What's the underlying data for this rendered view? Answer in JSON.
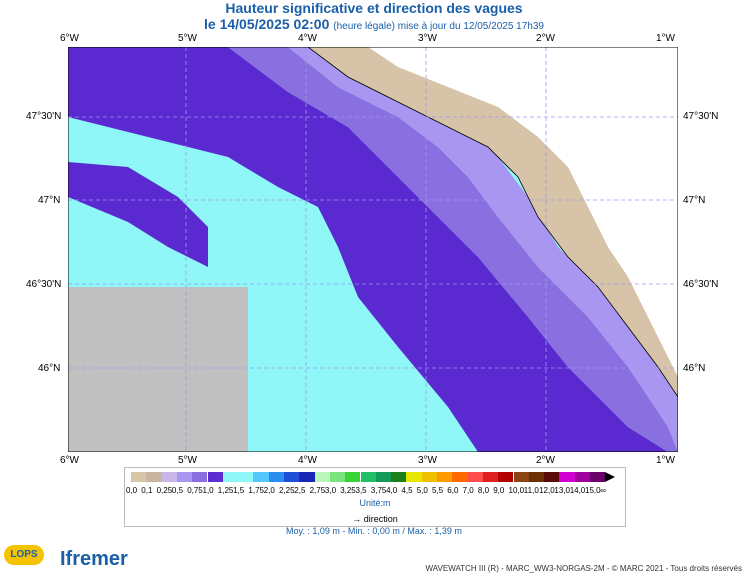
{
  "title": "Hauteur significative et direction des vagues",
  "subtitle_main": "le 14/05/2025 02:00",
  "subtitle_note": "(heure légale) mise à jour du 12/05/2025 17h39",
  "x_ticks": [
    "6°W",
    "5°W",
    "4°W",
    "3°W",
    "2°W",
    "1°W"
  ],
  "y_ticks": [
    "47°30'N",
    "47°N",
    "46°30'N",
    "46°N"
  ],
  "legend": {
    "values": [
      "0,0",
      "0,1",
      "0,25",
      "0,5",
      "0,75",
      "1,0",
      "1,25",
      "1,5",
      "1,75",
      "2,0",
      "2,25",
      "2,5",
      "2,75",
      "3,0",
      "3,25",
      "3,5",
      "3,75",
      "4,0",
      "4,5",
      "5,0",
      "5,5",
      "6,0",
      "7,0",
      "8,0",
      "9,0",
      "10,0",
      "11,0",
      "12,0",
      "13,0",
      "14,0",
      "15,0",
      "∞"
    ],
    "colors": [
      "#d8c7a6",
      "#c8b6a2",
      "#c9b6e8",
      "#a996f0",
      "#8a6fe0",
      "#5b2ed2",
      "#8ff7f7",
      "#8ff7f7",
      "#52c8ff",
      "#2a8df0",
      "#1f4fd8",
      "#1b26b6",
      "#b8f7b8",
      "#7be37b",
      "#37d437",
      "#21bf66",
      "#149a5b",
      "#1d7f1a",
      "#e6e600",
      "#f0c000",
      "#ff9a00",
      "#ff6a00",
      "#ff4d4d",
      "#e02020",
      "#b00000",
      "#8b4513",
      "#6b2f06",
      "#5a0a0a",
      "#d000d0",
      "#a000a0",
      "#6a006a"
    ],
    "unit": "Unité:m",
    "direction_label": "direction"
  },
  "stats": "Moy. : 1,09 m  -  Min. : 0,00 m / Max. : 1,39 m",
  "footer": "WAVEWATCH III (R) - MARC_WW3-NORGAS-2M - © MARC 2021 - Tous droits réservés",
  "logos": {
    "lops": "LOPS",
    "ifremer": "Ifremer"
  }
}
